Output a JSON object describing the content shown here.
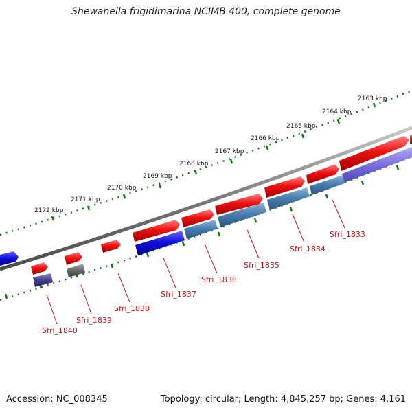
{
  "title": "Shewanella frigidimarina NCIMB 400, complete genome",
  "footer": {
    "accession": "Accession: NC_008345",
    "summary": "Topology: circular; Length: 4,845,257 bp; Genes: 4,161"
  },
  "scale": {
    "labels": [
      "2163 kbp",
      "2164 kbp",
      "2165 kbp",
      "2166 kbp",
      "2167 kbp",
      "2168 kbp",
      "2169 kbp",
      "2170 kbp",
      "2171 kbp",
      "2172 kbp"
    ]
  },
  "genes": [
    {
      "label": "Sfri_1833",
      "color": "#cc1111"
    },
    {
      "label": "Sfri_1834",
      "color": "#cc1111"
    },
    {
      "label": "Sfri_1835",
      "color": "#cc1111"
    },
    {
      "label": "Sfri_1836",
      "color": "#cc1111"
    },
    {
      "label": "Sfri_1837",
      "color": "#cc1111"
    },
    {
      "label": "Sfri_1838",
      "color": "#cc1111"
    },
    {
      "label": "Sfri_1839",
      "color": "#cc1111"
    },
    {
      "label": "Sfri_1840",
      "color": "#cc1111"
    }
  ],
  "colors": {
    "forward_feature": "#ee1111",
    "reverse_feature": "#1111dd",
    "reverse_cds": "#4a7fb0",
    "backbone": "#808080",
    "tick": "#117711"
  }
}
